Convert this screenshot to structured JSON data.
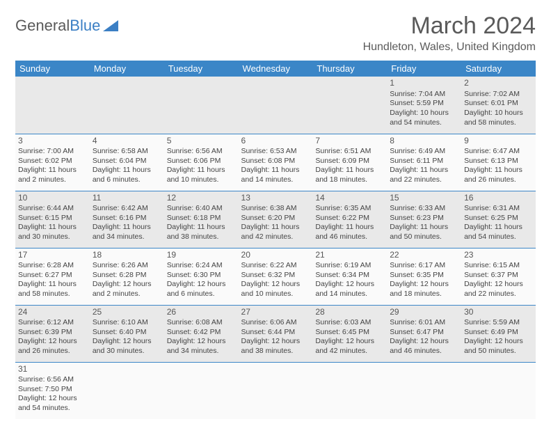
{
  "brand": {
    "part1": "General",
    "part2": "Blue"
  },
  "header": {
    "month_title": "March 2024",
    "location": "Hundleton, Wales, United Kingdom"
  },
  "colors": {
    "header_bg": "#3b86c7",
    "header_text": "#ffffff",
    "row_border": "#3b86c7",
    "logo_gray": "#5a5a5a",
    "logo_blue": "#3b7fc4"
  },
  "weekdays": [
    "Sunday",
    "Monday",
    "Tuesday",
    "Wednesday",
    "Thursday",
    "Friday",
    "Saturday"
  ],
  "weeks": [
    [
      null,
      null,
      null,
      null,
      null,
      {
        "n": "1",
        "sr": "Sunrise: 7:04 AM",
        "ss": "Sunset: 5:59 PM",
        "dl": "Daylight: 10 hours and 54 minutes."
      },
      {
        "n": "2",
        "sr": "Sunrise: 7:02 AM",
        "ss": "Sunset: 6:01 PM",
        "dl": "Daylight: 10 hours and 58 minutes."
      }
    ],
    [
      {
        "n": "3",
        "sr": "Sunrise: 7:00 AM",
        "ss": "Sunset: 6:02 PM",
        "dl": "Daylight: 11 hours and 2 minutes."
      },
      {
        "n": "4",
        "sr": "Sunrise: 6:58 AM",
        "ss": "Sunset: 6:04 PM",
        "dl": "Daylight: 11 hours and 6 minutes."
      },
      {
        "n": "5",
        "sr": "Sunrise: 6:56 AM",
        "ss": "Sunset: 6:06 PM",
        "dl": "Daylight: 11 hours and 10 minutes."
      },
      {
        "n": "6",
        "sr": "Sunrise: 6:53 AM",
        "ss": "Sunset: 6:08 PM",
        "dl": "Daylight: 11 hours and 14 minutes."
      },
      {
        "n": "7",
        "sr": "Sunrise: 6:51 AM",
        "ss": "Sunset: 6:09 PM",
        "dl": "Daylight: 11 hours and 18 minutes."
      },
      {
        "n": "8",
        "sr": "Sunrise: 6:49 AM",
        "ss": "Sunset: 6:11 PM",
        "dl": "Daylight: 11 hours and 22 minutes."
      },
      {
        "n": "9",
        "sr": "Sunrise: 6:47 AM",
        "ss": "Sunset: 6:13 PM",
        "dl": "Daylight: 11 hours and 26 minutes."
      }
    ],
    [
      {
        "n": "10",
        "sr": "Sunrise: 6:44 AM",
        "ss": "Sunset: 6:15 PM",
        "dl": "Daylight: 11 hours and 30 minutes."
      },
      {
        "n": "11",
        "sr": "Sunrise: 6:42 AM",
        "ss": "Sunset: 6:16 PM",
        "dl": "Daylight: 11 hours and 34 minutes."
      },
      {
        "n": "12",
        "sr": "Sunrise: 6:40 AM",
        "ss": "Sunset: 6:18 PM",
        "dl": "Daylight: 11 hours and 38 minutes."
      },
      {
        "n": "13",
        "sr": "Sunrise: 6:38 AM",
        "ss": "Sunset: 6:20 PM",
        "dl": "Daylight: 11 hours and 42 minutes."
      },
      {
        "n": "14",
        "sr": "Sunrise: 6:35 AM",
        "ss": "Sunset: 6:22 PM",
        "dl": "Daylight: 11 hours and 46 minutes."
      },
      {
        "n": "15",
        "sr": "Sunrise: 6:33 AM",
        "ss": "Sunset: 6:23 PM",
        "dl": "Daylight: 11 hours and 50 minutes."
      },
      {
        "n": "16",
        "sr": "Sunrise: 6:31 AM",
        "ss": "Sunset: 6:25 PM",
        "dl": "Daylight: 11 hours and 54 minutes."
      }
    ],
    [
      {
        "n": "17",
        "sr": "Sunrise: 6:28 AM",
        "ss": "Sunset: 6:27 PM",
        "dl": "Daylight: 11 hours and 58 minutes."
      },
      {
        "n": "18",
        "sr": "Sunrise: 6:26 AM",
        "ss": "Sunset: 6:28 PM",
        "dl": "Daylight: 12 hours and 2 minutes."
      },
      {
        "n": "19",
        "sr": "Sunrise: 6:24 AM",
        "ss": "Sunset: 6:30 PM",
        "dl": "Daylight: 12 hours and 6 minutes."
      },
      {
        "n": "20",
        "sr": "Sunrise: 6:22 AM",
        "ss": "Sunset: 6:32 PM",
        "dl": "Daylight: 12 hours and 10 minutes."
      },
      {
        "n": "21",
        "sr": "Sunrise: 6:19 AM",
        "ss": "Sunset: 6:34 PM",
        "dl": "Daylight: 12 hours and 14 minutes."
      },
      {
        "n": "22",
        "sr": "Sunrise: 6:17 AM",
        "ss": "Sunset: 6:35 PM",
        "dl": "Daylight: 12 hours and 18 minutes."
      },
      {
        "n": "23",
        "sr": "Sunrise: 6:15 AM",
        "ss": "Sunset: 6:37 PM",
        "dl": "Daylight: 12 hours and 22 minutes."
      }
    ],
    [
      {
        "n": "24",
        "sr": "Sunrise: 6:12 AM",
        "ss": "Sunset: 6:39 PM",
        "dl": "Daylight: 12 hours and 26 minutes."
      },
      {
        "n": "25",
        "sr": "Sunrise: 6:10 AM",
        "ss": "Sunset: 6:40 PM",
        "dl": "Daylight: 12 hours and 30 minutes."
      },
      {
        "n": "26",
        "sr": "Sunrise: 6:08 AM",
        "ss": "Sunset: 6:42 PM",
        "dl": "Daylight: 12 hours and 34 minutes."
      },
      {
        "n": "27",
        "sr": "Sunrise: 6:06 AM",
        "ss": "Sunset: 6:44 PM",
        "dl": "Daylight: 12 hours and 38 minutes."
      },
      {
        "n": "28",
        "sr": "Sunrise: 6:03 AM",
        "ss": "Sunset: 6:45 PM",
        "dl": "Daylight: 12 hours and 42 minutes."
      },
      {
        "n": "29",
        "sr": "Sunrise: 6:01 AM",
        "ss": "Sunset: 6:47 PM",
        "dl": "Daylight: 12 hours and 46 minutes."
      },
      {
        "n": "30",
        "sr": "Sunrise: 5:59 AM",
        "ss": "Sunset: 6:49 PM",
        "dl": "Daylight: 12 hours and 50 minutes."
      }
    ],
    [
      {
        "n": "31",
        "sr": "Sunrise: 6:56 AM",
        "ss": "Sunset: 7:50 PM",
        "dl": "Daylight: 12 hours and 54 minutes."
      },
      null,
      null,
      null,
      null,
      null,
      null
    ]
  ]
}
